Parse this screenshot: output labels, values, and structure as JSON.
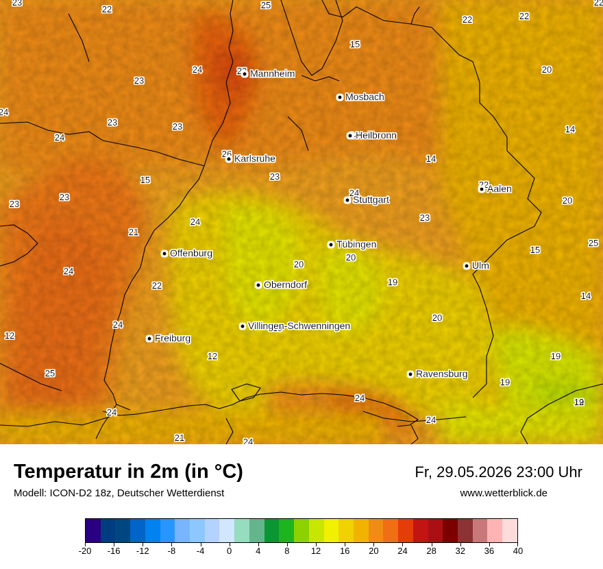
{
  "title": "Temperatur in 2m (in °C)",
  "model": "Modell: ICON-D2 18z, Deutscher Wetterdienst",
  "datetime": "Fr, 29.05.2026 23:00 Uhr",
  "website": "www.wetterblick.de",
  "cities": [
    {
      "name": "Mannheim"
    },
    {
      "name": "Mosbach"
    },
    {
      "name": "Heilbronn"
    },
    {
      "name": "Karlsruhe"
    },
    {
      "name": "Aalen"
    },
    {
      "name": "Stuttgart"
    },
    {
      "name": "Tübingen"
    },
    {
      "name": "Offenburg"
    },
    {
      "name": "Ulm"
    },
    {
      "name": "Oberndorf"
    },
    {
      "name": "Villingen-Schwenningen"
    },
    {
      "name": "Freiburg"
    },
    {
      "name": "Ravensburg"
    }
  ],
  "values": [
    "23",
    "22",
    "25",
    "22",
    "22",
    "15",
    "22",
    "24",
    "20",
    "23",
    "22",
    "24",
    "24",
    "23",
    "23",
    "14",
    "24",
    "26",
    "23",
    "14",
    "15",
    "24",
    "22",
    "23",
    "23",
    "24",
    "20",
    "23",
    "21",
    "25",
    "15",
    "20",
    "20",
    "24",
    "19",
    "12",
    "14",
    "22",
    "20",
    "24",
    "19",
    "12",
    "12",
    "19",
    "25",
    "24",
    "19",
    "19",
    "24",
    "24",
    "21",
    "24"
  ],
  "legend": {
    "colors": [
      "#2b0080",
      "#003c80",
      "#004680",
      "#0064c8",
      "#0082f0",
      "#2896ff",
      "#78b4ff",
      "#8cc8ff",
      "#b4d2ff",
      "#d2e6ff",
      "#96dcbe",
      "#64b48c",
      "#0a9632",
      "#1eb41e",
      "#8cd200",
      "#c8e600",
      "#f0f000",
      "#f0d200",
      "#f0b400",
      "#f08c14",
      "#f06e14",
      "#e63c0a",
      "#c31414",
      "#aa0f14",
      "#7d0000",
      "#8c3232",
      "#c87878",
      "#ffb4b4",
      "#ffdcdc"
    ],
    "ticks": [
      "-20",
      "-16",
      "-12",
      "-8",
      "-4",
      "0",
      "4",
      "8",
      "12",
      "16",
      "20",
      "24",
      "28",
      "32",
      "36",
      "40"
    ]
  }
}
